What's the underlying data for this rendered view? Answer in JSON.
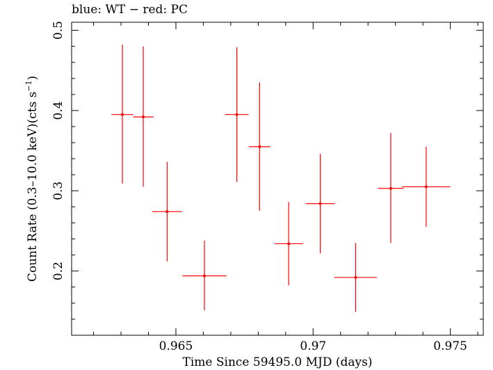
{
  "chart_data": {
    "type": "scatter",
    "title": "blue: WT − red: PC",
    "xlabel": "Time Since 59495.0 MJD (days)",
    "ylabel_main": "Count Rate (0.3–10.0 keV)(cts s",
    "ylabel_sup": "−1",
    "ylabel_end": ")",
    "xlim": [
      0.9612,
      0.9762
    ],
    "ylim": [
      0.12,
      0.51
    ],
    "x_ticks": [
      0.965,
      0.97,
      0.975
    ],
    "x_tick_labels": [
      "0.965",
      "0.97",
      "0.975"
    ],
    "y_ticks": [
      0.2,
      0.3,
      0.4,
      0.5
    ],
    "y_tick_labels": [
      "0.2",
      "0.3",
      "0.4",
      "0.5"
    ],
    "series": [
      {
        "color": "#ff0000",
        "points": [
          {
            "x": 0.96305,
            "xerr": 0.0004,
            "y": 0.395,
            "ylo": 0.309,
            "yhi": 0.482
          },
          {
            "x": 0.96381,
            "xerr": 0.00037,
            "y": 0.392,
            "ylo": 0.305,
            "yhi": 0.48
          },
          {
            "x": 0.96468,
            "xerr": 0.00054,
            "y": 0.274,
            "ylo": 0.212,
            "yhi": 0.336
          },
          {
            "x": 0.96604,
            "xerr": 0.0008,
            "y": 0.194,
            "ylo": 0.151,
            "yhi": 0.238
          },
          {
            "x": 0.96722,
            "xerr": 0.00043,
            "y": 0.395,
            "ylo": 0.311,
            "yhi": 0.479
          },
          {
            "x": 0.96805,
            "xerr": 0.00039,
            "y": 0.355,
            "ylo": 0.275,
            "yhi": 0.435
          },
          {
            "x": 0.96911,
            "xerr": 0.00052,
            "y": 0.234,
            "ylo": 0.182,
            "yhi": 0.286
          },
          {
            "x": 0.97026,
            "xerr": 0.00053,
            "y": 0.284,
            "ylo": 0.222,
            "yhi": 0.346
          },
          {
            "x": 0.97155,
            "xerr": 0.00078,
            "y": 0.192,
            "ylo": 0.149,
            "yhi": 0.235
          },
          {
            "x": 0.97283,
            "xerr": 0.00047,
            "y": 0.303,
            "ylo": 0.235,
            "yhi": 0.372
          },
          {
            "x": 0.97412,
            "xerr": 0.00088,
            "y": 0.305,
            "ylo": 0.255,
            "yhi": 0.355
          }
        ]
      }
    ]
  }
}
